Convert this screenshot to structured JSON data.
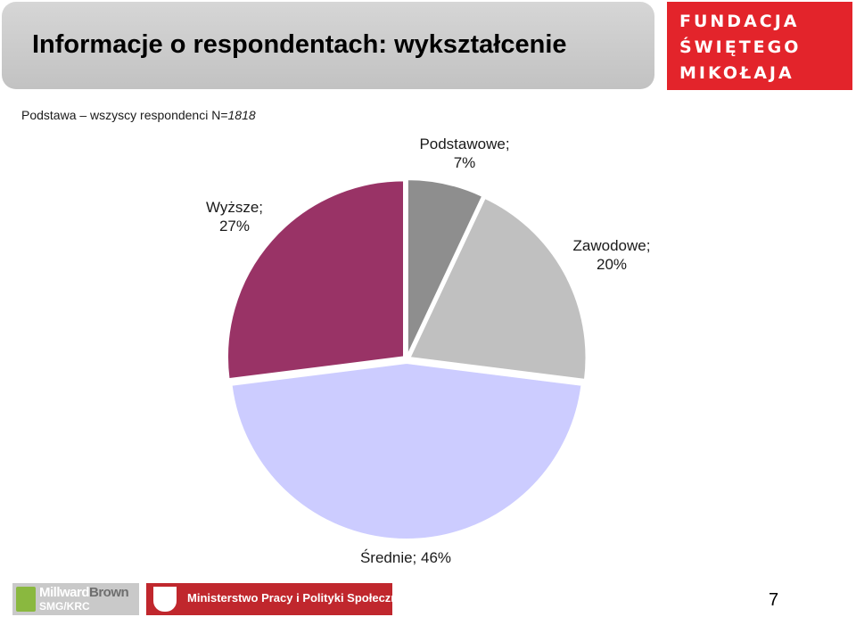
{
  "header": {
    "title": "Informacje o respondentach: wykształcenie"
  },
  "logo": {
    "line1": "FUNDACJA",
    "line2": "ŚWIĘTEGO",
    "line3": "MIKOŁAJA",
    "color": "#e3242b"
  },
  "base": {
    "prefix": "Podstawa – wszyscy respondenci N=",
    "n": "1818"
  },
  "chart_data": {
    "type": "pie",
    "slices": [
      {
        "name": "Podstawowe",
        "value": 7,
        "label": "Podstawowe;",
        "value_label": "7%",
        "color": "#8e8e8e"
      },
      {
        "name": "Zawodowe",
        "value": 20,
        "label": "Zawodowe;",
        "value_label": "20%",
        "color": "#c0c0c0"
      },
      {
        "name": "Średnie",
        "value": 46,
        "label": "Średnie; 46%",
        "value_label": "",
        "color": "#ccccff"
      },
      {
        "name": "Wyższe",
        "value": 27,
        "label": "Wyższe;",
        "value_label": "27%",
        "color": "#993366"
      }
    ],
    "start_angle": "top",
    "direction": "clockwise",
    "exploded": true
  },
  "footer": {
    "mb_line1a": "Millward",
    "mb_line1b": "Brown",
    "mb_line2": "SMG/KRC",
    "ministry": "Ministerstwo Pracy i Polityki Społecznej",
    "page_number": "7"
  }
}
